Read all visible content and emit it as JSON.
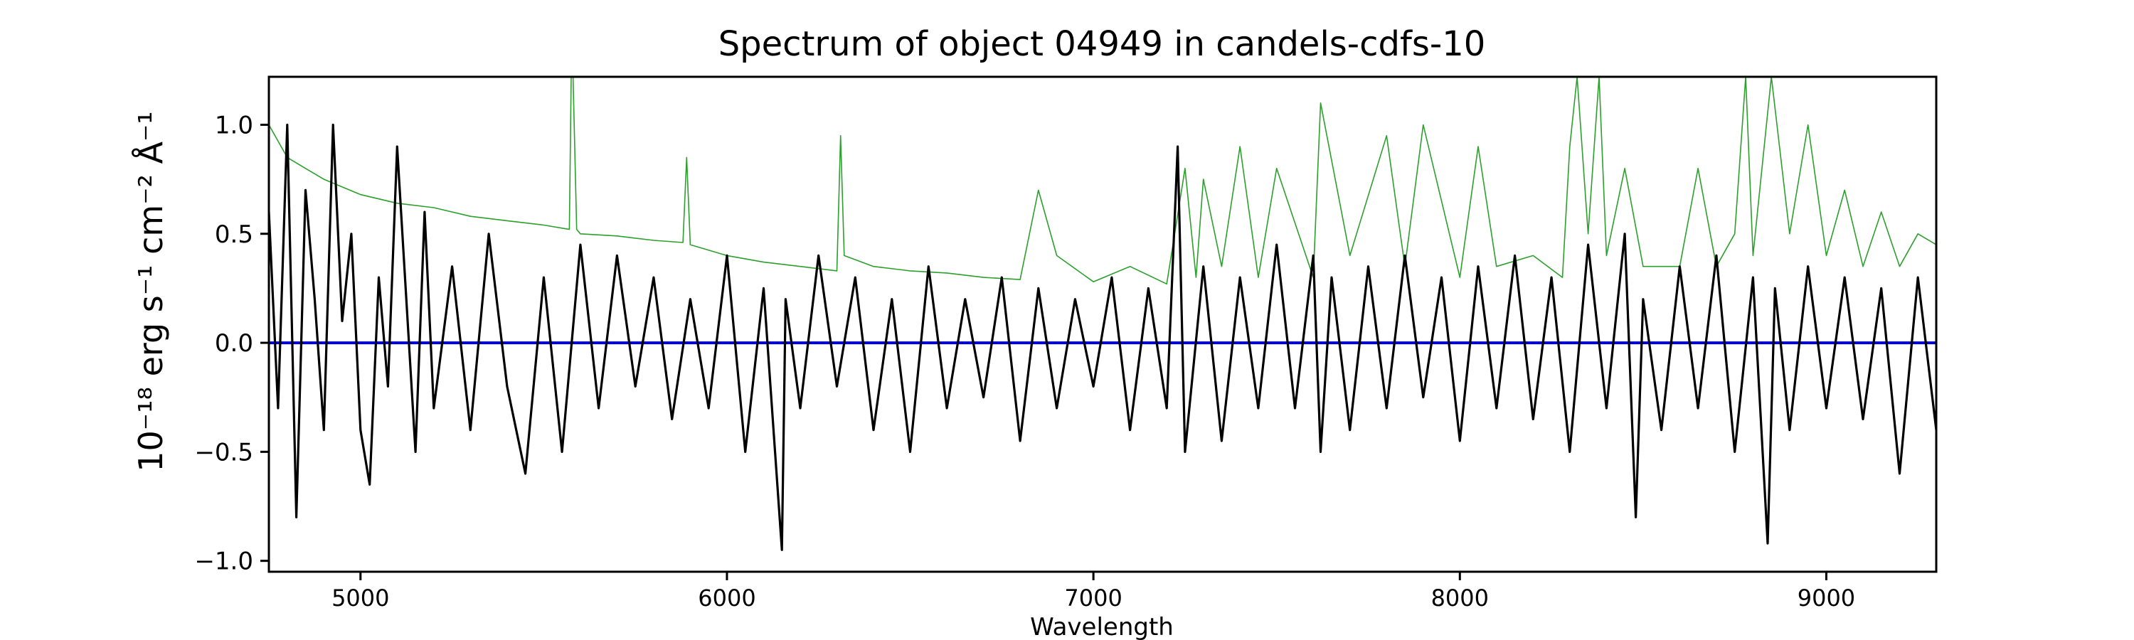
{
  "chart_data": {
    "type": "line",
    "title": "Spectrum of object 04949 in candels-cdfs-10",
    "xlabel": "Wavelength",
    "ylabel": "10⁻¹⁸ erg s⁻¹ cm⁻² Å⁻¹",
    "xlim": [
      4750,
      9300
    ],
    "ylim": [
      -1.05,
      1.22
    ],
    "x_ticks": [
      5000,
      6000,
      7000,
      8000,
      9000
    ],
    "y_ticks": [
      -1.0,
      -0.5,
      0.0,
      0.5,
      1.0
    ],
    "y_tick_labels": [
      "−1.0",
      "−0.5",
      "0.0",
      "0.5",
      "1.0"
    ],
    "grid": false,
    "colors": {
      "flux": "#000000",
      "error": "#2ca02c",
      "zero": "#0000cc"
    },
    "series": [
      {
        "name": "",
        "role": "flux",
        "x": [
          4750,
          4775,
          4800,
          4825,
          4850,
          4875,
          4900,
          4925,
          4950,
          4975,
          5000,
          5025,
          5050,
          5075,
          5100,
          5125,
          5150,
          5175,
          5200,
          5250,
          5300,
          5350,
          5400,
          5450,
          5500,
          5550,
          5600,
          5650,
          5700,
          5750,
          5800,
          5850,
          5900,
          5950,
          6000,
          6050,
          6100,
          6150,
          6160,
          6200,
          6250,
          6300,
          6350,
          6400,
          6450,
          6500,
          6550,
          6600,
          6650,
          6700,
          6750,
          6800,
          6850,
          6900,
          6950,
          7000,
          7050,
          7100,
          7150,
          7200,
          7230,
          7250,
          7300,
          7350,
          7400,
          7450,
          7500,
          7550,
          7600,
          7620,
          7650,
          7700,
          7750,
          7800,
          7850,
          7900,
          7950,
          8000,
          8050,
          8100,
          8150,
          8200,
          8250,
          8300,
          8350,
          8400,
          8450,
          8480,
          8500,
          8550,
          8600,
          8650,
          8700,
          8750,
          8800,
          8840,
          8860,
          8900,
          8950,
          9000,
          9050,
          9100,
          9150,
          9200,
          9250,
          9300
        ],
        "y": [
          0.6,
          -0.3,
          1.0,
          -0.8,
          0.7,
          0.2,
          -0.4,
          1.0,
          0.1,
          0.5,
          -0.4,
          -0.65,
          0.3,
          -0.2,
          0.9,
          0.2,
          -0.5,
          0.6,
          -0.3,
          0.35,
          -0.4,
          0.5,
          -0.2,
          -0.6,
          0.3,
          -0.5,
          0.45,
          -0.3,
          0.4,
          -0.2,
          0.3,
          -0.35,
          0.2,
          -0.3,
          0.4,
          -0.5,
          0.25,
          -0.95,
          0.2,
          -0.3,
          0.4,
          -0.2,
          0.3,
          -0.4,
          0.2,
          -0.5,
          0.35,
          -0.3,
          0.2,
          -0.25,
          0.3,
          -0.45,
          0.25,
          -0.3,
          0.2,
          -0.2,
          0.3,
          -0.4,
          0.25,
          -0.3,
          0.9,
          -0.5,
          0.35,
          -0.45,
          0.3,
          -0.3,
          0.45,
          -0.3,
          0.4,
          -0.5,
          0.3,
          -0.4,
          0.35,
          -0.3,
          0.4,
          -0.25,
          0.3,
          -0.45,
          0.35,
          -0.3,
          0.4,
          -0.35,
          0.3,
          -0.5,
          0.45,
          -0.3,
          0.5,
          -0.8,
          0.2,
          -0.4,
          0.35,
          -0.3,
          0.4,
          -0.5,
          0.3,
          -0.92,
          0.25,
          -0.4,
          0.35,
          -0.3,
          0.3,
          -0.35,
          0.25,
          -0.6,
          0.3,
          -0.4
        ]
      },
      {
        "name": "",
        "role": "error",
        "x": [
          4750,
          4800,
          4850,
          4900,
          5000,
          5100,
          5200,
          5300,
          5400,
          5500,
          5570,
          5575,
          5580,
          5590,
          5600,
          5700,
          5800,
          5880,
          5890,
          5900,
          6000,
          6100,
          6200,
          6300,
          6310,
          6320,
          6400,
          6500,
          6600,
          6700,
          6800,
          6850,
          6900,
          7000,
          7100,
          7200,
          7250,
          7280,
          7300,
          7350,
          7400,
          7450,
          7500,
          7600,
          7620,
          7700,
          7800,
          7850,
          7900,
          8000,
          8050,
          8100,
          8200,
          8280,
          8300,
          8320,
          8350,
          8380,
          8400,
          8450,
          8500,
          8600,
          8650,
          8700,
          8750,
          8780,
          8800,
          8850,
          8900,
          8950,
          9000,
          9050,
          9100,
          9150,
          9200,
          9250,
          9300
        ],
        "y": [
          1.0,
          0.85,
          0.8,
          0.75,
          0.68,
          0.64,
          0.62,
          0.58,
          0.56,
          0.54,
          0.52,
          1.22,
          1.22,
          0.52,
          0.5,
          0.49,
          0.47,
          0.46,
          0.85,
          0.45,
          0.4,
          0.37,
          0.35,
          0.33,
          0.95,
          0.4,
          0.35,
          0.33,
          0.32,
          0.3,
          0.29,
          0.7,
          0.4,
          0.28,
          0.35,
          0.27,
          0.8,
          0.3,
          0.75,
          0.35,
          0.9,
          0.3,
          0.8,
          0.3,
          1.1,
          0.4,
          0.95,
          0.35,
          1.0,
          0.3,
          0.9,
          0.35,
          0.4,
          0.3,
          0.9,
          1.22,
          0.5,
          1.22,
          0.4,
          0.8,
          0.35,
          0.35,
          0.8,
          0.35,
          0.5,
          1.22,
          0.4,
          1.22,
          0.5,
          1.0,
          0.4,
          0.7,
          0.35,
          0.6,
          0.35,
          0.5,
          0.45
        ]
      },
      {
        "name": "",
        "role": "zero",
        "x": [
          4750,
          9300
        ],
        "y": [
          0,
          0
        ]
      }
    ]
  }
}
